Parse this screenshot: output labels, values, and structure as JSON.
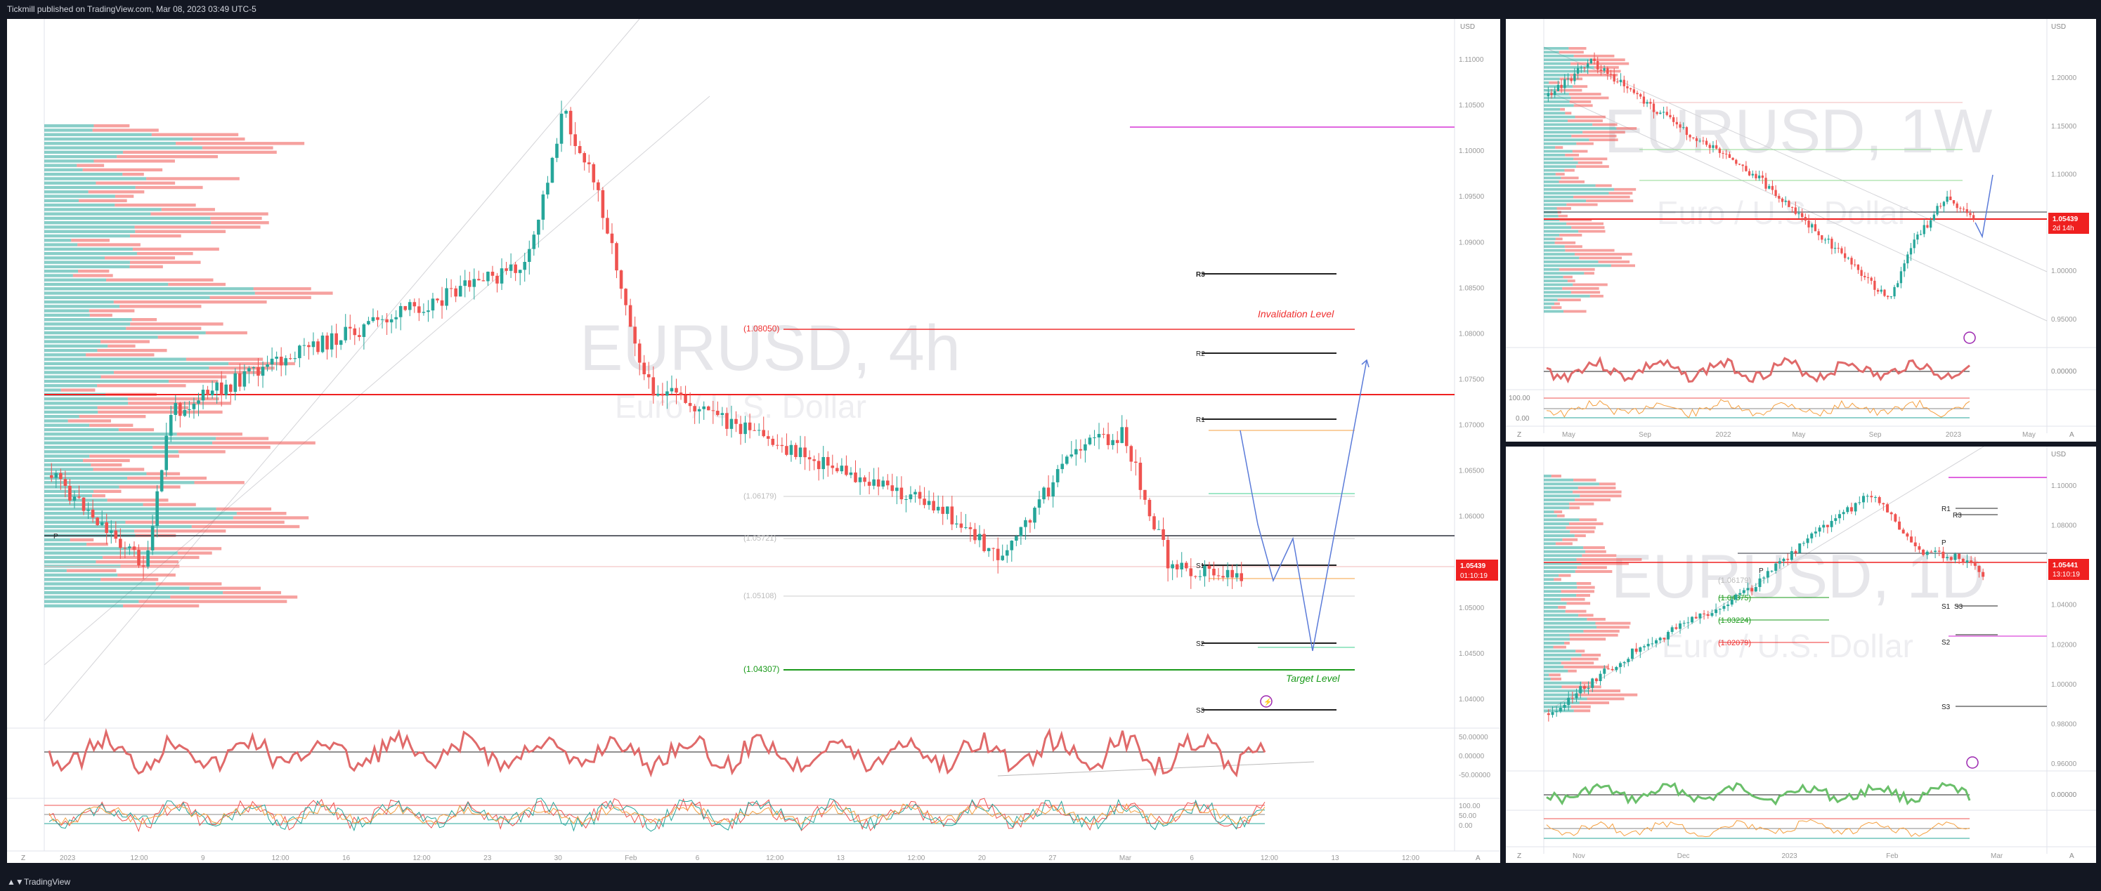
{
  "header": {
    "publisher_line": "Tickmill published on TradingView.com, Mar 08, 2023 03:49 UTC-5"
  },
  "footer": {
    "brand": "TradingView"
  },
  "colors": {
    "up": "#26a69a",
    "down": "#ef5350",
    "bg": "#ffffff",
    "dark": "#131722",
    "line_blue": "#5b7bd9"
  },
  "main_chart": {
    "watermark_symbol": "EURUSD, 4h",
    "watermark_name": "Euro / U.S. Dollar",
    "currency": "USD",
    "price_scale": [
      "1.11000",
      "1.10500",
      "1.10000",
      "1.09500",
      "1.09000",
      "1.08500",
      "1.08000",
      "1.07500",
      "1.07000",
      "1.06500",
      "1.06000",
      "1.05500",
      "1.05000",
      "1.04500",
      "1.04000"
    ],
    "osc_scale_1": [
      "50.00000",
      "0.00000",
      "-50.00000"
    ],
    "osc_scale_2": [
      "100.00",
      "50.00",
      "0.00"
    ],
    "time_scale": [
      "2023",
      "12:00",
      "9",
      "12:00",
      "16",
      "12:00",
      "23",
      "30",
      "Feb",
      "6",
      "12:00",
      "13",
      "12:00",
      "20",
      "27",
      "Mar",
      "6",
      "12:00",
      "13",
      "12:00"
    ],
    "last_price": "1.05439",
    "countdown": "01:10:19",
    "pivot_labels": [
      "R3",
      "R2",
      "R1",
      "S1",
      "S2",
      "S3",
      "P"
    ],
    "level_labels": [
      "(1.08050)",
      "(1.06179)",
      "(1.05721)",
      "(1.05108)",
      "(1.04307)"
    ],
    "invalidation_label": "Invalidation Level",
    "target_label": "Target Level",
    "corner_left": "Z",
    "corner_right": "A"
  },
  "weekly_chart": {
    "watermark_symbol": "EURUSD, 1W",
    "watermark_name": "Euro / U.S. Dollar",
    "currency": "USD",
    "price_scale": [
      "1.20000",
      "1.15000",
      "1.10000",
      "1.05000",
      "1.00000",
      "0.95000"
    ],
    "osc_scale": [
      "0.00000",
      "100.00",
      "0.00"
    ],
    "time_scale": [
      "May",
      "Sep",
      "2022",
      "May",
      "Sep",
      "2023",
      "May"
    ],
    "last_price": "1.05439",
    "countdown": "2d 14h",
    "corner_left": "Z",
    "corner_right": "A"
  },
  "daily_chart": {
    "watermark_symbol": "EURUSD, 1D",
    "watermark_name": "Euro / U.S. Dollar",
    "currency": "USD",
    "price_scale": [
      "1.10000",
      "1.08000",
      "1.06000",
      "1.04000",
      "1.02000",
      "1.00000",
      "0.98000",
      "0.96000"
    ],
    "osc_scale": [
      "0.00000"
    ],
    "time_scale": [
      "Nov",
      "Dec",
      "2023",
      "Feb",
      "Mar"
    ],
    "last_price": "1.05441",
    "countdown": "13:10:19",
    "pivot_labels": [
      "R1",
      "R3",
      "P",
      "P",
      "S1",
      "S3",
      "S2",
      "S3"
    ],
    "level_labels": [
      "(1.04375)",
      "(1.03224)",
      "(1.02079)",
      "(1.06179)"
    ],
    "corner_left": "Z",
    "corner_right": "A"
  }
}
